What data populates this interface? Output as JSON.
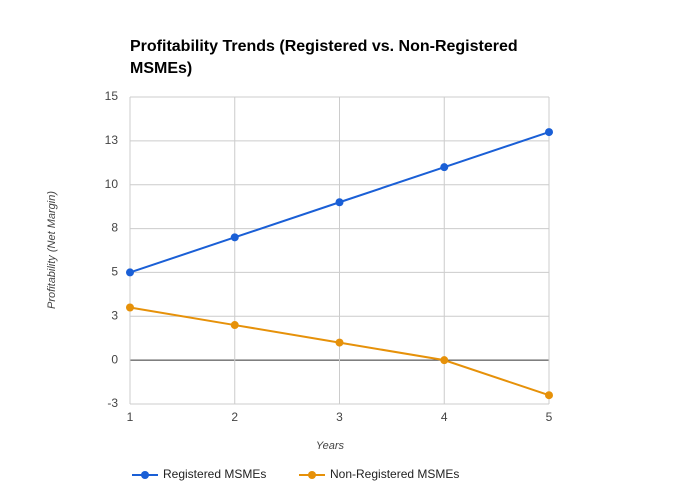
{
  "chart_data": {
    "type": "line",
    "title": "Profitability Trends (Registered vs. Non-Registered MSMEs)",
    "x_label": "Years",
    "y_label": "Profitability (Net Margin)",
    "x": [
      1,
      2,
      3,
      4,
      5
    ],
    "series": [
      {
        "name": "Registered MSMEs",
        "color": "#1a5fd6",
        "values": [
          5,
          7,
          9,
          11,
          13
        ]
      },
      {
        "name": "Non-Registered MSMEs",
        "color": "#e69109",
        "values": [
          3,
          2,
          1,
          0,
          -2
        ]
      }
    ],
    "xlim": [
      1,
      5
    ],
    "xticks": [
      1,
      2,
      3,
      4,
      5
    ],
    "ylim": [
      -2.5,
      15
    ],
    "yticks": [
      {
        "value": -2.5,
        "label": "-3"
      },
      0,
      {
        "value": 2.5,
        "label": "3"
      },
      5,
      {
        "value": 7.5,
        "label": "8"
      },
      10,
      {
        "value": 12.5,
        "label": "13"
      },
      15
    ],
    "grid": true,
    "legend": "bottom"
  }
}
